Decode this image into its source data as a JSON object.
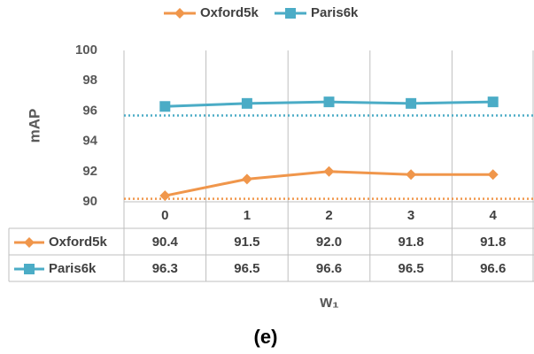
{
  "chart_data": {
    "type": "line",
    "ylabel": "mAP",
    "xlabel": "w₁",
    "caption": "(e)",
    "categories": [
      "0",
      "1",
      "2",
      "3",
      "4"
    ],
    "series": [
      {
        "name": "Oxford5k",
        "color": "#f0964b",
        "marker": "diamond",
        "values": [
          90.4,
          91.5,
          92.0,
          91.8,
          91.8
        ],
        "value_labels": [
          "90.4",
          "91.5",
          "92.0",
          "91.8",
          "91.8"
        ]
      },
      {
        "name": "Paris6k",
        "color": "#4bacc6",
        "marker": "square",
        "values": [
          96.3,
          96.5,
          96.6,
          96.5,
          96.6
        ],
        "value_labels": [
          "96.3",
          "96.5",
          "96.6",
          "96.5",
          "96.6"
        ]
      }
    ],
    "baselines": [
      {
        "value": 90.2,
        "color": "#f0964b"
      },
      {
        "value": 95.7,
        "color": "#4bacc6"
      }
    ],
    "ylim": [
      90,
      100
    ],
    "yticks": [
      90,
      92,
      94,
      96,
      98,
      100
    ],
    "legend": "top",
    "grid": true
  }
}
